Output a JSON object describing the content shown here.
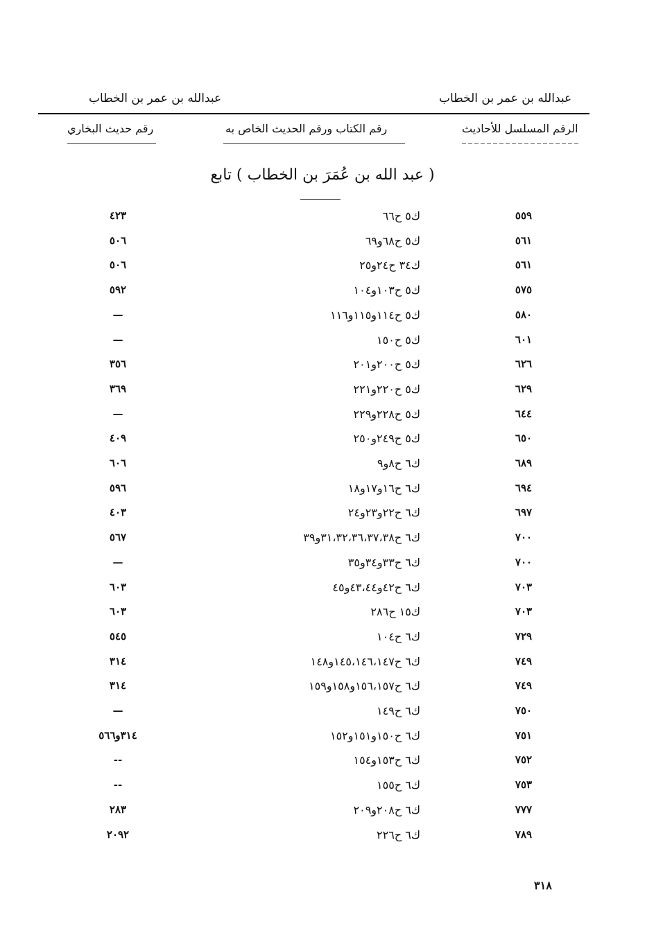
{
  "running_head": {
    "left": "عبدالله بن عمر بن الخطاب",
    "right": "عبدالله بن عمر بن الخطاب"
  },
  "columns": {
    "serial": "الرقم المسلسل للأحاديث",
    "book_hadith": "رقم الكتاب ورقم الحديث الخاص به",
    "bukhari": "رقم حديث البخاري"
  },
  "section_title": "( عبد الله بن عُمَرَ بن الخطاب ) تابع",
  "rows": [
    {
      "serial": "٥٥٩",
      "ref": "ك٥ ح٦٦",
      "bukhari": "٤٢٣"
    },
    {
      "serial": "٥٦١",
      "ref": "ك٥ ح٦٨و٦٩",
      "bukhari": "٥٠٦"
    },
    {
      "serial": "٥٦١",
      "ref": "ك٣٤ ح٢٤و٢٥",
      "bukhari": "٥٠٦"
    },
    {
      "serial": "٥٧٥",
      "ref": "ك٥ ح١٠٣و١٠٤",
      "bukhari": "٥٩٢"
    },
    {
      "serial": "٥٨٠",
      "ref": "ك٥ ح١١٤و١١٥و١١٦",
      "bukhari": "—"
    },
    {
      "serial": "٦٠١",
      "ref": "ك٥ ح١٥٠",
      "bukhari": "—"
    },
    {
      "serial": "٦٢٦",
      "ref": "ك٥ ح٢٠٠و٢٠١",
      "bukhari": "٣٥٦"
    },
    {
      "serial": "٦٢٩",
      "ref": "ك٥ ح٢٢٠و٢٢١",
      "bukhari": "٣٦٩"
    },
    {
      "serial": "٦٤٤",
      "ref": "ك٥ ح٢٢٨و٢٢٩",
      "bukhari": "—"
    },
    {
      "serial": "٦٥٠",
      "ref": "ك٥ ح٢٤٩و٢٥٠",
      "bukhari": "٤٠٩"
    },
    {
      "serial": "٦٨٩",
      "ref": "ك٦ ح٨و٩",
      "bukhari": "٦٠٦"
    },
    {
      "serial": "٦٩٤",
      "ref": "ك٦ ح١٦و١٧و١٨",
      "bukhari": "٥٩٦"
    },
    {
      "serial": "٦٩٧",
      "ref": "ك٦ ح٢٢و٢٣و٢٤",
      "bukhari": "٤٠٣"
    },
    {
      "serial": "٧٠٠",
      "ref": "ك٦ ح٣١،٣٢،٣٦،٣٧،٣٨و٣٩",
      "bukhari": "٥٦٧"
    },
    {
      "serial": "٧٠٠",
      "ref": "ك٦ ح٣٣و٣٤و٣٥",
      "bukhari": "—"
    },
    {
      "serial": "٧٠٣",
      "ref": "ك٦ ح٤٢و٤٣،٤٤و٤٥",
      "bukhari": "٦٠٣"
    },
    {
      "serial": "٧٠٣",
      "ref": "ك١٥ ح٢٨٦",
      "bukhari": "٦٠٣"
    },
    {
      "serial": "٧٢٩",
      "ref": "ك٦ ح١٠٤",
      "bukhari": "٥٤٥"
    },
    {
      "serial": "٧٤٩",
      "ref": "ك٦ ح١٤٥،١٤٦،١٤٧و١٤٨",
      "bukhari": "٣١٤"
    },
    {
      "serial": "٧٤٩",
      "ref": "ك٦ ح١٥٦،١٥٧و١٥٨و١٥٩",
      "bukhari": "٣١٤"
    },
    {
      "serial": "٧٥٠",
      "ref": "ك٦ ح١٤٩",
      "bukhari": "—"
    },
    {
      "serial": "٧٥١",
      "ref": "ك٦ ح١٥٠و١٥١و١٥٢",
      "bukhari": "٣١٤و٥٦٦"
    },
    {
      "serial": "٧٥٢",
      "ref": "ك٦ ح١٥٣و١٥٤",
      "bukhari": "--"
    },
    {
      "serial": "٧٥٣",
      "ref": "ك٦ ح١٥٥",
      "bukhari": "--"
    },
    {
      "serial": "٧٧٧",
      "ref": "ك٦ ح٢٠٨و٢٠٩",
      "bukhari": "٢٨٣"
    },
    {
      "serial": "٧٨٩",
      "ref": "ك٦ ح٢٢٦",
      "bukhari": "٢٠٩٢"
    }
  ],
  "page_number": "٣١٨"
}
